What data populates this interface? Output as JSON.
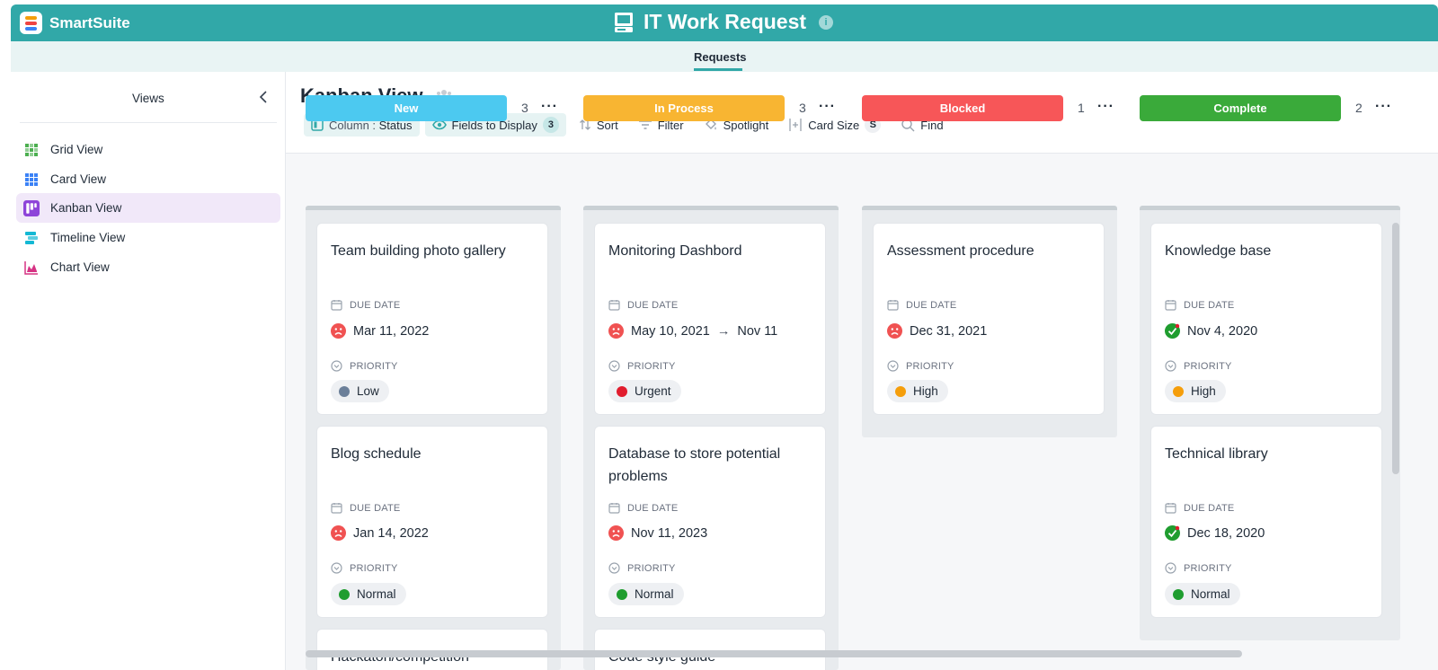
{
  "app": {
    "name": "SmartSuite",
    "title": "IT Work Request"
  },
  "nav": {
    "active_tab": "Requests"
  },
  "sidebar": {
    "title": "Views",
    "items": [
      {
        "label": "Grid View",
        "icon": "grid-icon",
        "color": "#4caf50"
      },
      {
        "label": "Card View",
        "icon": "card-icon",
        "color": "#3b82f6"
      },
      {
        "label": "Kanban View",
        "icon": "kanban-icon",
        "color": "#8e44d9",
        "active": true
      },
      {
        "label": "Timeline View",
        "icon": "timeline-icon",
        "color": "#14b8d4"
      },
      {
        "label": "Chart View",
        "icon": "chart-icon",
        "color": "#d63384"
      }
    ]
  },
  "view": {
    "title": "Kanban View",
    "toolbar": {
      "column_prefix": "Column : ",
      "column_value": "Status",
      "fields_label": "Fields to Display",
      "fields_count": "3",
      "sort": "Sort",
      "filter": "Filter",
      "spotlight": "Spotlight",
      "card_size": "Card Size",
      "card_size_value": "S",
      "find": "Find"
    }
  },
  "board": {
    "field_labels": {
      "due_date": "DUE DATE",
      "priority": "PRIORITY"
    },
    "priority_colors": {
      "Low": "#6b7f99",
      "Urgent": "#e11d2e",
      "High": "#f59e0b",
      "Normal": "#1f9d2f"
    },
    "columns": [
      {
        "name": "New",
        "count": "3",
        "color": "#4cc9f0",
        "cards": [
          {
            "title": "Team building photo gallery",
            "due": "Mar 11, 2022",
            "due_status": "overdue",
            "priority": "Low"
          },
          {
            "title": "Blog schedule",
            "due": "Jan 14, 2022",
            "due_status": "overdue",
            "priority": "Normal"
          },
          {
            "title": "Hackaton/competition"
          }
        ]
      },
      {
        "name": "In Process",
        "count": "3",
        "color": "#f8b532",
        "cards": [
          {
            "title": "Monitoring Dashbord",
            "due": "May 10, 2021",
            "due_end": "Nov 11",
            "due_status": "overdue",
            "priority": "Urgent"
          },
          {
            "title": "Database to store potential problems",
            "due": "Nov 11, 2023",
            "due_status": "overdue",
            "priority": "Normal"
          },
          {
            "title": "Code style guide"
          }
        ]
      },
      {
        "name": "Blocked",
        "count": "1",
        "color": "#f75658",
        "cards": [
          {
            "title": "Assessment procedure",
            "due": "Dec 31, 2021",
            "due_status": "overdue",
            "priority": "High"
          }
        ]
      },
      {
        "name": "Complete",
        "count": "2",
        "color": "#3aaa3a",
        "cards": [
          {
            "title": "Knowledge base",
            "due": "Nov 4, 2020",
            "due_status": "done",
            "priority": "High"
          },
          {
            "title": "Technical library",
            "due": "Dec 18, 2020",
            "due_status": "done",
            "priority": "Normal"
          }
        ]
      }
    ]
  }
}
